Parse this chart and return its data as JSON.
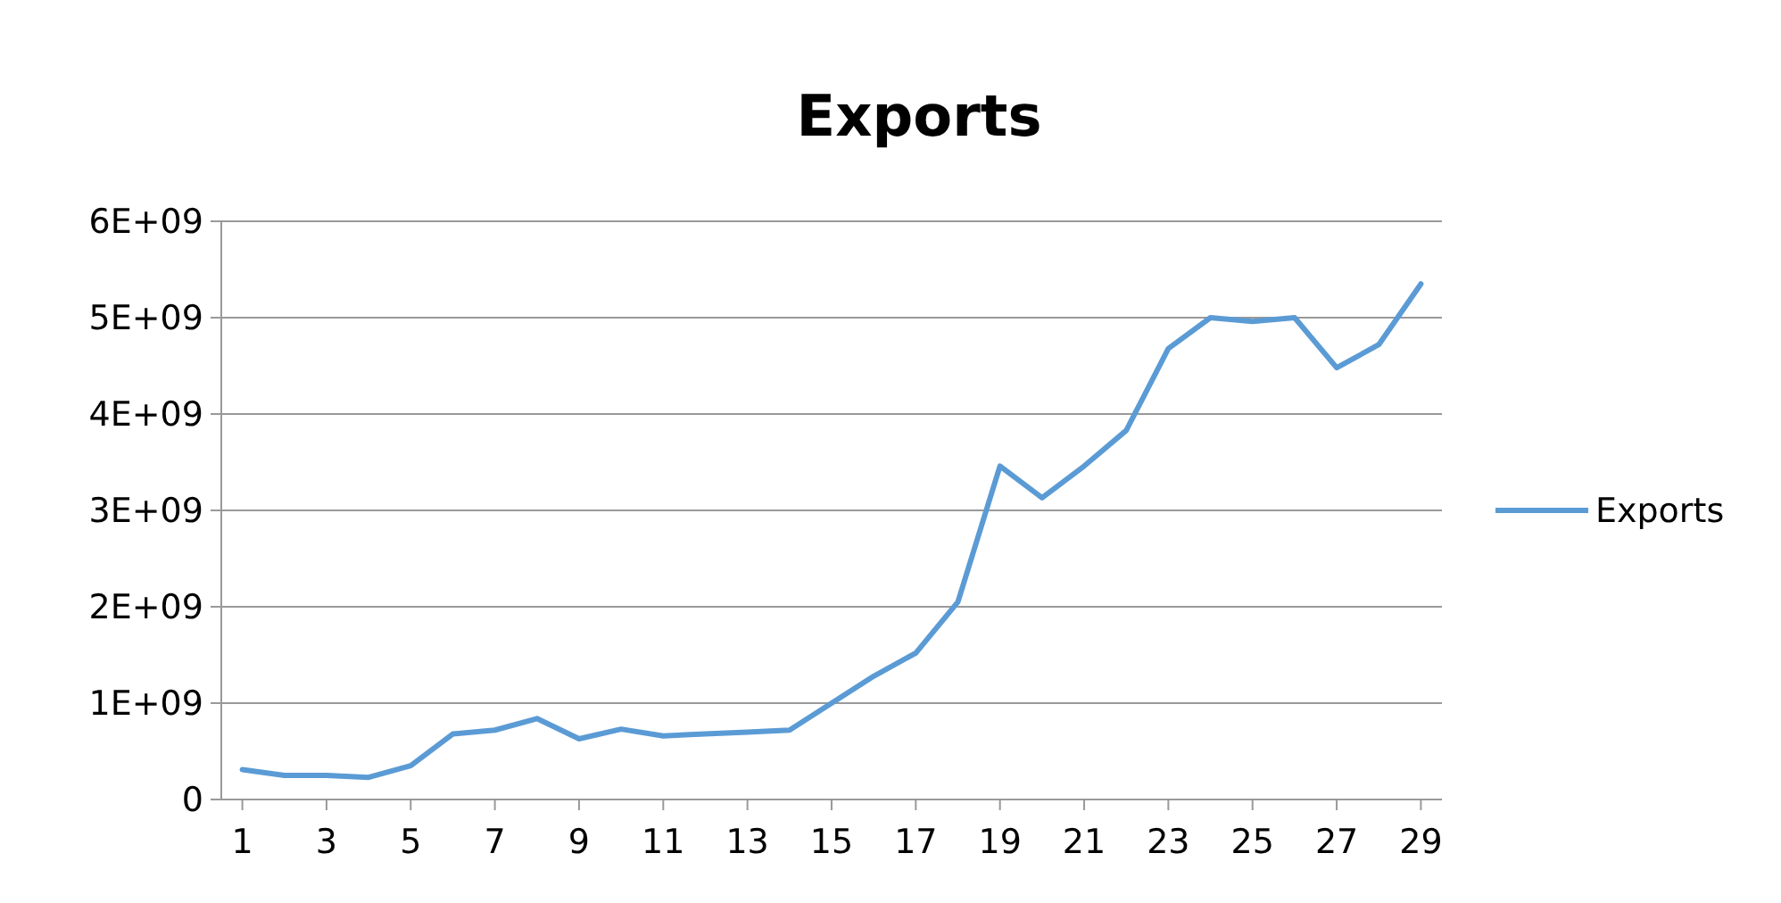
{
  "chart_data": {
    "type": "line",
    "title": "Exports",
    "x": [
      1,
      2,
      3,
      4,
      5,
      6,
      7,
      8,
      9,
      10,
      11,
      12,
      13,
      14,
      15,
      16,
      17,
      18,
      19,
      20,
      21,
      22,
      23,
      24,
      25,
      26,
      27,
      28,
      29
    ],
    "series": [
      {
        "name": "Exports",
        "color": "#5b9bd5",
        "values": [
          310000000,
          250000000,
          250000000,
          230000000,
          350000000,
          680000000,
          720000000,
          840000000,
          630000000,
          730000000,
          660000000,
          680000000,
          700000000,
          720000000,
          1000000000,
          1280000000,
          1520000000,
          2050000000,
          3460000000,
          3130000000,
          3460000000,
          3830000000,
          4680000000,
          5000000000,
          4960000000,
          5000000000,
          4480000000,
          4720000000,
          5350000000
        ]
      }
    ],
    "xlim": [
      0.5,
      29.5
    ],
    "xticks": [
      1,
      3,
      5,
      7,
      9,
      11,
      13,
      15,
      17,
      19,
      21,
      23,
      25,
      27,
      29
    ],
    "ylim": [
      0,
      6000000000
    ],
    "yticks": [
      0,
      {
        "value": 1000000000,
        "label": "1E+09"
      },
      {
        "value": 2000000000,
        "label": "2E+09"
      },
      {
        "value": 3000000000,
        "label": "3E+09"
      },
      {
        "value": 4000000000,
        "label": "4E+09"
      },
      {
        "value": 5000000000,
        "label": "5E+09"
      },
      {
        "value": 6000000000,
        "label": "6E+09"
      }
    ],
    "grid": "y",
    "legend": "right",
    "marker": "none",
    "line_style": "solid"
  }
}
